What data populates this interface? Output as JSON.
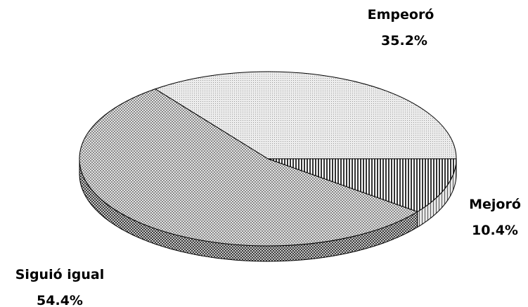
{
  "chart_data": {
    "type": "pie",
    "style": "3d",
    "title": "",
    "slices": [
      {
        "label": "Empeoró",
        "value": 35.2,
        "display": "35.2%",
        "pattern": "light-dots"
      },
      {
        "label": "Mejoró",
        "value": 10.4,
        "display": "10.4%",
        "pattern": "vertical-lines"
      },
      {
        "label": "Siguió igual",
        "value": 54.4,
        "display": "54.4%",
        "pattern": "crosshatch"
      }
    ],
    "legend": "none",
    "colors": {
      "edge": "#000000",
      "background": "#ffffff"
    }
  }
}
